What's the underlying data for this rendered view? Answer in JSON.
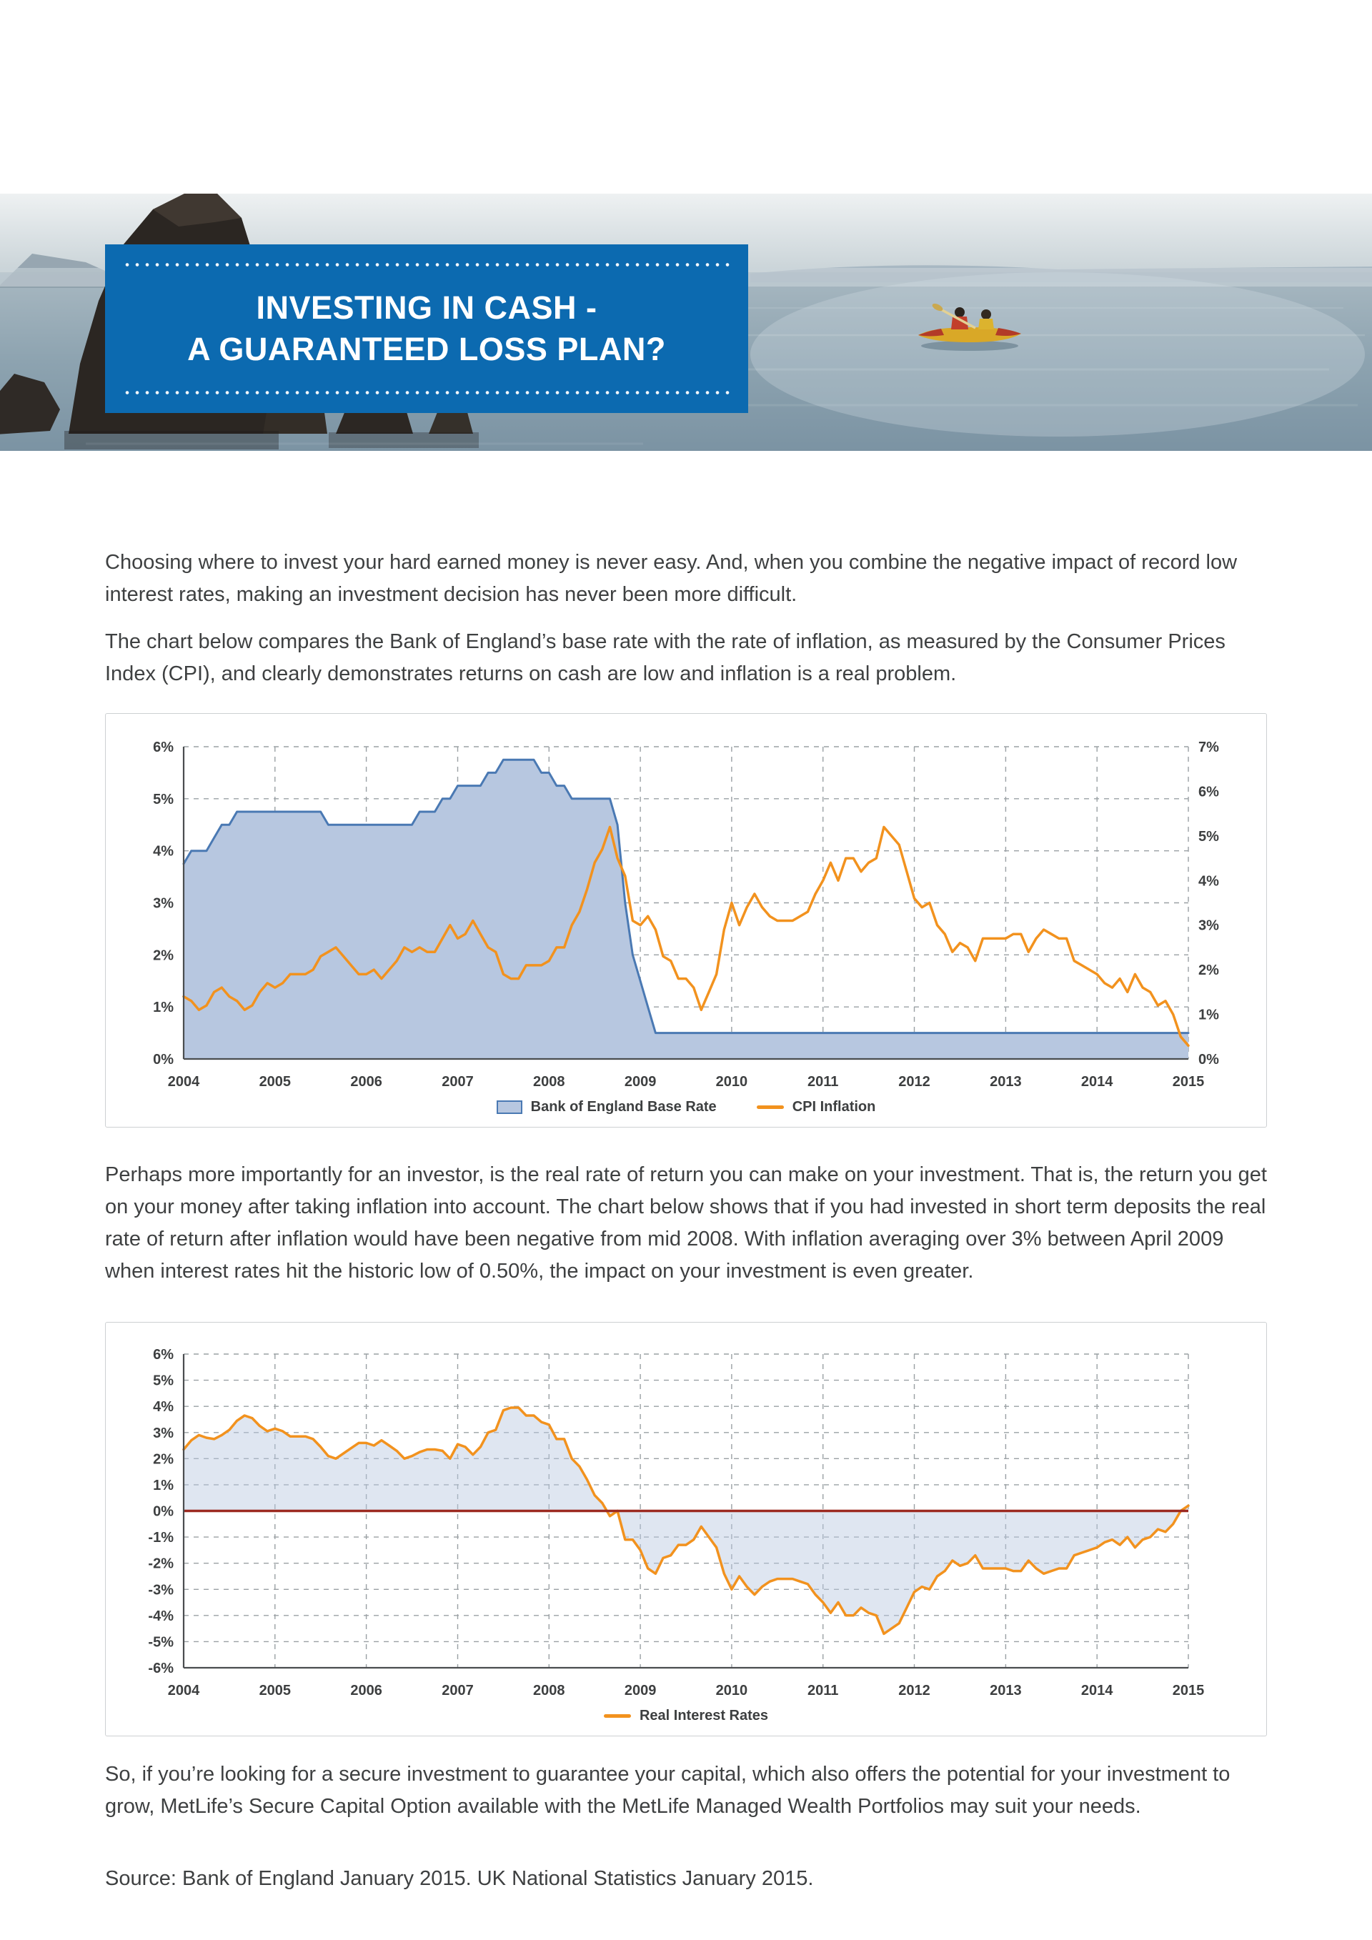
{
  "header": {
    "title_line1": "INVESTING IN CASH -",
    "title_line2": "A GUARANTEED LOSS PLAN?"
  },
  "body": {
    "p1": "Choosing where to invest your hard earned money is never easy. And, when you combine the negative impact of record low interest rates, making an investment decision has never been more difficult.",
    "p2": "The chart below compares the Bank of England’s base rate with the rate of inflation, as measured by the Consumer Prices Index (CPI), and clearly demonstrates returns on cash are low and inflation is a real problem.",
    "p3": "Perhaps more importantly for an investor, is the real rate of return you can make on your investment. That is, the return you get on your money after taking inflation into account. The chart below shows that if you had invested in short term deposits the real rate of return after inflation would have been negative from mid 2008. With inflation averaging over 3% between April 2009 when interest rates hit the historic low of 0.50%, the impact on your investment is even greater.",
    "p4": "So, if you’re looking for a secure investment to guarantee your capital, which also offers the potential for your investment to grow, MetLife’s Secure Capital Option available with the MetLife Managed Wealth Portfolios may suit your needs.",
    "source": "Source: Bank of England January 2015. UK National Statistics January 2015."
  },
  "colors": {
    "banner_blue": "#0c6ab0",
    "area_fill": "#b7c7e0",
    "area_stroke": "#4a79b3",
    "cpi_orange": "#f2921e",
    "zero_line_red": "#9c2a21",
    "grid_grey": "#9aa0a4",
    "text": "#3e4041"
  },
  "chart_data": [
    {
      "type": "area",
      "x": {
        "start_year": 2004,
        "end_year": 2015,
        "tick_labels": [
          "2004",
          "2005",
          "2006",
          "2007",
          "2008",
          "2009",
          "2010",
          "2011",
          "2012",
          "2013",
          "2014",
          "2015"
        ]
      },
      "y_left": {
        "lim": [
          0,
          6
        ],
        "ticks": [
          6,
          5,
          4,
          3,
          2,
          1,
          0
        ],
        "format": "percent"
      },
      "y_right": {
        "lim": [
          0,
          7
        ],
        "ticks": [
          7,
          6,
          5,
          4,
          3,
          2,
          1,
          0
        ],
        "format": "percent"
      },
      "legend_position": "bottom",
      "series": [
        {
          "name": "Bank of England Base Rate",
          "axis": "left",
          "style": "area",
          "fill": "#b7c7e0",
          "stroke": "#4a79b3",
          "values": [
            3.75,
            4,
            4,
            4,
            4.25,
            4.5,
            4.5,
            4.75,
            4.75,
            4.75,
            4.75,
            4.75,
            4.75,
            4.75,
            4.75,
            4.75,
            4.75,
            4.75,
            4.75,
            4.5,
            4.5,
            4.5,
            4.5,
            4.5,
            4.5,
            4.5,
            4.5,
            4.5,
            4.5,
            4.5,
            4.5,
            4.75,
            4.75,
            4.75,
            5,
            5,
            5.25,
            5.25,
            5.25,
            5.25,
            5.5,
            5.5,
            5.75,
            5.75,
            5.75,
            5.75,
            5.75,
            5.5,
            5.5,
            5.25,
            5.25,
            5,
            5,
            5,
            5,
            5,
            5,
            4.5,
            3,
            2,
            1.5,
            1,
            0.5,
            0.5,
            0.5,
            0.5,
            0.5,
            0.5,
            0.5,
            0.5,
            0.5,
            0.5,
            0.5,
            0.5,
            0.5,
            0.5,
            0.5,
            0.5,
            0.5,
            0.5,
            0.5,
            0.5,
            0.5,
            0.5,
            0.5,
            0.5,
            0.5,
            0.5,
            0.5,
            0.5,
            0.5,
            0.5,
            0.5,
            0.5,
            0.5,
            0.5,
            0.5,
            0.5,
            0.5,
            0.5,
            0.5,
            0.5,
            0.5,
            0.5,
            0.5,
            0.5,
            0.5,
            0.5,
            0.5,
            0.5,
            0.5,
            0.5,
            0.5,
            0.5,
            0.5,
            0.5,
            0.5,
            0.5,
            0.5,
            0.5,
            0.5,
            0.5,
            0.5,
            0.5,
            0.5,
            0.5,
            0.5,
            0.5,
            0.5,
            0.5,
            0.5,
            0.5,
            0.5
          ]
        },
        {
          "name": "CPI Inflation",
          "axis": "right",
          "style": "line",
          "stroke": "#f2921e",
          "values": [
            1.4,
            1.3,
            1.1,
            1.2,
            1.5,
            1.6,
            1.4,
            1.3,
            1.1,
            1.2,
            1.5,
            1.7,
            1.6,
            1.7,
            1.9,
            1.9,
            1.9,
            2.0,
            2.3,
            2.4,
            2.5,
            2.3,
            2.1,
            1.9,
            1.9,
            2.0,
            1.8,
            2.0,
            2.2,
            2.5,
            2.4,
            2.5,
            2.4,
            2.4,
            2.7,
            3.0,
            2.7,
            2.8,
            3.1,
            2.8,
            2.5,
            2.4,
            1.9,
            1.8,
            1.8,
            2.1,
            2.1,
            2.1,
            2.2,
            2.5,
            2.5,
            3.0,
            3.3,
            3.8,
            4.4,
            4.7,
            5.2,
            4.5,
            4.1,
            3.1,
            3.0,
            3.2,
            2.9,
            2.3,
            2.2,
            1.8,
            1.8,
            1.6,
            1.1,
            1.5,
            1.9,
            2.9,
            3.5,
            3.0,
            3.4,
            3.7,
            3.4,
            3.2,
            3.1,
            3.1,
            3.1,
            3.2,
            3.3,
            3.7,
            4.0,
            4.4,
            4.0,
            4.5,
            4.5,
            4.2,
            4.4,
            4.5,
            5.2,
            5.0,
            4.8,
            4.2,
            3.6,
            3.4,
            3.5,
            3.0,
            2.8,
            2.4,
            2.6,
            2.5,
            2.2,
            2.7,
            2.7,
            2.7,
            2.7,
            2.8,
            2.8,
            2.4,
            2.7,
            2.9,
            2.8,
            2.7,
            2.7,
            2.2,
            2.1,
            2.0,
            1.9,
            1.7,
            1.6,
            1.8,
            1.5,
            1.9,
            1.6,
            1.5,
            1.2,
            1.3,
            1.0,
            0.5,
            0.3
          ]
        }
      ]
    },
    {
      "type": "line",
      "x": {
        "start_year": 2004,
        "end_year": 2015,
        "tick_labels": [
          "2004",
          "2005",
          "2006",
          "2007",
          "2008",
          "2009",
          "2010",
          "2011",
          "2012",
          "2013",
          "2014",
          "2015"
        ]
      },
      "y_left": {
        "lim": [
          -6,
          6
        ],
        "ticks": [
          6,
          5,
          4,
          3,
          2,
          1,
          0,
          -1,
          -2,
          -3,
          -4,
          -5,
          -6
        ],
        "format": "percent"
      },
      "zero_line": true,
      "zero_line_color": "#9c2a21",
      "legend_position": "bottom",
      "series": [
        {
          "name": "Real Interest Rates",
          "axis": "left",
          "style": "line_fill_zero",
          "fill": "rgba(183,199,224,0.45)",
          "stroke": "#f2921e",
          "values": [
            2.35,
            2.7,
            2.9,
            2.8,
            2.75,
            2.9,
            3.1,
            3.45,
            3.65,
            3.55,
            3.25,
            3.05,
            3.15,
            3.05,
            2.85,
            2.85,
            2.85,
            2.75,
            2.45,
            2.1,
            2.0,
            2.2,
            2.4,
            2.6,
            2.6,
            2.5,
            2.7,
            2.5,
            2.3,
            2.0,
            2.1,
            2.25,
            2.35,
            2.35,
            2.3,
            2.0,
            2.55,
            2.45,
            2.15,
            2.45,
            3.0,
            3.1,
            3.85,
            3.95,
            3.95,
            3.65,
            3.65,
            3.4,
            3.3,
            2.75,
            2.75,
            2.0,
            1.7,
            1.2,
            0.6,
            0.3,
            -0.2,
            0.0,
            -1.1,
            -1.1,
            -1.5,
            -2.2,
            -2.4,
            -1.8,
            -1.7,
            -1.3,
            -1.3,
            -1.1,
            -0.6,
            -1.0,
            -1.4,
            -2.4,
            -3.0,
            -2.5,
            -2.9,
            -3.2,
            -2.9,
            -2.7,
            -2.6,
            -2.6,
            -2.6,
            -2.7,
            -2.8,
            -3.2,
            -3.5,
            -3.9,
            -3.5,
            -4.0,
            -4.0,
            -3.7,
            -3.9,
            -4.0,
            -4.7,
            -4.5,
            -4.3,
            -3.7,
            -3.1,
            -2.9,
            -3.0,
            -2.5,
            -2.3,
            -1.9,
            -2.1,
            -2.0,
            -1.7,
            -2.2,
            -2.2,
            -2.2,
            -2.2,
            -2.3,
            -2.3,
            -1.9,
            -2.2,
            -2.4,
            -2.3,
            -2.2,
            -2.2,
            -1.7,
            -1.6,
            -1.5,
            -1.4,
            -1.2,
            -1.1,
            -1.3,
            -1.0,
            -1.4,
            -1.1,
            -1.0,
            -0.7,
            -0.8,
            -0.5,
            0.0,
            0.2
          ]
        }
      ]
    }
  ]
}
